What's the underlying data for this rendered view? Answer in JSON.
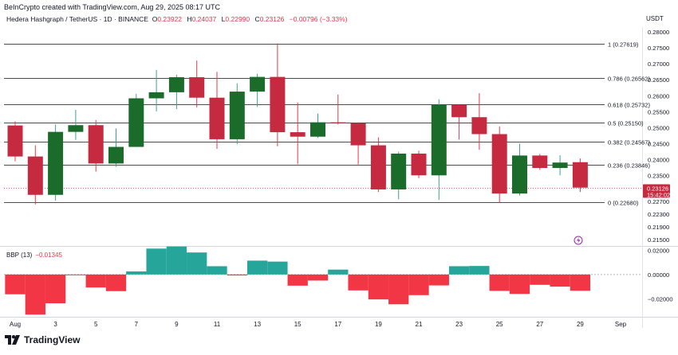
{
  "header": {
    "credit": "BeInCrypto created with TradingView.com, Aug 29, 2025 08:17 UTC",
    "symbol": "Hedera Hashgraph / TetherUS · 1D · BINANCE",
    "ohlc": [
      {
        "k": "O",
        "v": "0.23922"
      },
      {
        "k": "H",
        "v": "0.24037"
      },
      {
        "k": "L",
        "v": "0.22990"
      },
      {
        "k": "C",
        "v": "0.23126"
      }
    ],
    "change": "−0.00796 (−3.33%)",
    "currency": "USDT"
  },
  "colors": {
    "up": "#1b6b2a",
    "down": "#c62a40",
    "up_wick": "#3ea38a",
    "down_wick": "#e5374b",
    "bbp_pos": "#26a69a",
    "bbp_neg": "#f23645",
    "fib": "#4d4d4d",
    "price_tag": "#c62a40"
  },
  "chart_data": {
    "type": "candlestick",
    "x_labels": [
      "Aug",
      "3",
      "5",
      "7",
      "9",
      "11",
      "13",
      "15",
      "17",
      "19",
      "21",
      "23",
      "25",
      "27",
      "29",
      "Sep"
    ],
    "y_ticks": [
      "0.28000",
      "0.27500",
      "0.27000",
      "0.26500",
      "0.26000",
      "0.25500",
      "0.25000",
      "0.24500",
      "0.24000",
      "0.23500",
      "0.23000",
      "0.22700",
      "0.22300",
      "0.21900",
      "0.21500"
    ],
    "ylim": [
      0.2135,
      0.2815
    ],
    "candles": [
      {
        "o": 0.2507,
        "h": 0.252,
        "l": 0.2395,
        "c": 0.241
      },
      {
        "o": 0.241,
        "h": 0.2445,
        "l": 0.226,
        "c": 0.229
      },
      {
        "o": 0.229,
        "h": 0.251,
        "l": 0.2272,
        "c": 0.2487
      },
      {
        "o": 0.2487,
        "h": 0.2556,
        "l": 0.2462,
        "c": 0.2508
      },
      {
        "o": 0.2508,
        "h": 0.2524,
        "l": 0.2363,
        "c": 0.2388
      },
      {
        "o": 0.2388,
        "h": 0.2498,
        "l": 0.2378,
        "c": 0.244
      },
      {
        "o": 0.244,
        "h": 0.2606,
        "l": 0.244,
        "c": 0.2592
      },
      {
        "o": 0.2592,
        "h": 0.2681,
        "l": 0.2551,
        "c": 0.2611
      },
      {
        "o": 0.2611,
        "h": 0.2666,
        "l": 0.2558,
        "c": 0.2658
      },
      {
        "o": 0.2658,
        "h": 0.271,
        "l": 0.2564,
        "c": 0.2594
      },
      {
        "o": 0.2594,
        "h": 0.2675,
        "l": 0.2434,
        "c": 0.2464
      },
      {
        "o": 0.2464,
        "h": 0.2639,
        "l": 0.2448,
        "c": 0.2613
      },
      {
        "o": 0.2613,
        "h": 0.2669,
        "l": 0.2565,
        "c": 0.2659
      },
      {
        "o": 0.2659,
        "h": 0.2764,
        "l": 0.2442,
        "c": 0.2486
      },
      {
        "o": 0.2486,
        "h": 0.2579,
        "l": 0.2386,
        "c": 0.2472
      },
      {
        "o": 0.2472,
        "h": 0.2544,
        "l": 0.2468,
        "c": 0.2517
      },
      {
        "o": 0.2517,
        "h": 0.2604,
        "l": 0.251,
        "c": 0.2514
      },
      {
        "o": 0.2514,
        "h": 0.2517,
        "l": 0.2385,
        "c": 0.2445
      },
      {
        "o": 0.2445,
        "h": 0.247,
        "l": 0.2299,
        "c": 0.2307
      },
      {
        "o": 0.2307,
        "h": 0.2425,
        "l": 0.2276,
        "c": 0.2419
      },
      {
        "o": 0.2419,
        "h": 0.2428,
        "l": 0.2342,
        "c": 0.2351
      },
      {
        "o": 0.2351,
        "h": 0.2589,
        "l": 0.2274,
        "c": 0.2571
      },
      {
        "o": 0.2571,
        "h": 0.2572,
        "l": 0.2463,
        "c": 0.2533
      },
      {
        "o": 0.2533,
        "h": 0.2608,
        "l": 0.2431,
        "c": 0.248
      },
      {
        "o": 0.248,
        "h": 0.2504,
        "l": 0.2265,
        "c": 0.2294
      },
      {
        "o": 0.2294,
        "h": 0.245,
        "l": 0.2288,
        "c": 0.2413
      },
      {
        "o": 0.2413,
        "h": 0.2418,
        "l": 0.2368,
        "c": 0.2374
      },
      {
        "o": 0.2374,
        "h": 0.2414,
        "l": 0.2351,
        "c": 0.2391
      },
      {
        "o": 0.23922,
        "h": 0.24037,
        "l": 0.2299,
        "c": 0.23126
      }
    ],
    "fib_levels": [
      {
        "label": "1 (0.27619)",
        "value": 0.27619
      },
      {
        "label": "0.786 (0.26562)",
        "value": 0.26562
      },
      {
        "label": "0.618 (0.25732)",
        "value": 0.25732
      },
      {
        "label": "0.5 (0.25150)",
        "value": 0.2515
      },
      {
        "label": "0.382 (0.24567)",
        "value": 0.24567
      },
      {
        "label": "0.236 (0.23846)",
        "value": 0.23846
      },
      {
        "label": "0 (0.22680)",
        "value": 0.2268
      }
    ],
    "last_price": {
      "value": 0.23126,
      "label": "0.23126",
      "countdown": "15:42:02"
    },
    "bbp": {
      "title": "BBP (13)",
      "current": "−0.01345",
      "y_ticks": [
        "0.02000",
        "0.00000",
        "−0.02000"
      ],
      "ylim": [
        -0.0335,
        0.0215
      ],
      "values": [
        -0.0163,
        -0.033,
        -0.0237,
        -0.0005,
        -0.0107,
        -0.0137,
        0.0025,
        0.0213,
        0.023,
        0.0181,
        0.0068,
        -0.0008,
        0.0114,
        0.0106,
        -0.0092,
        -0.005,
        0.004,
        -0.0131,
        -0.0205,
        -0.0245,
        -0.017,
        -0.009,
        0.0068,
        0.007,
        -0.0135,
        -0.016,
        -0.0085,
        -0.01,
        -0.0134
      ]
    }
  },
  "footer": {
    "brand": "TradingView"
  }
}
